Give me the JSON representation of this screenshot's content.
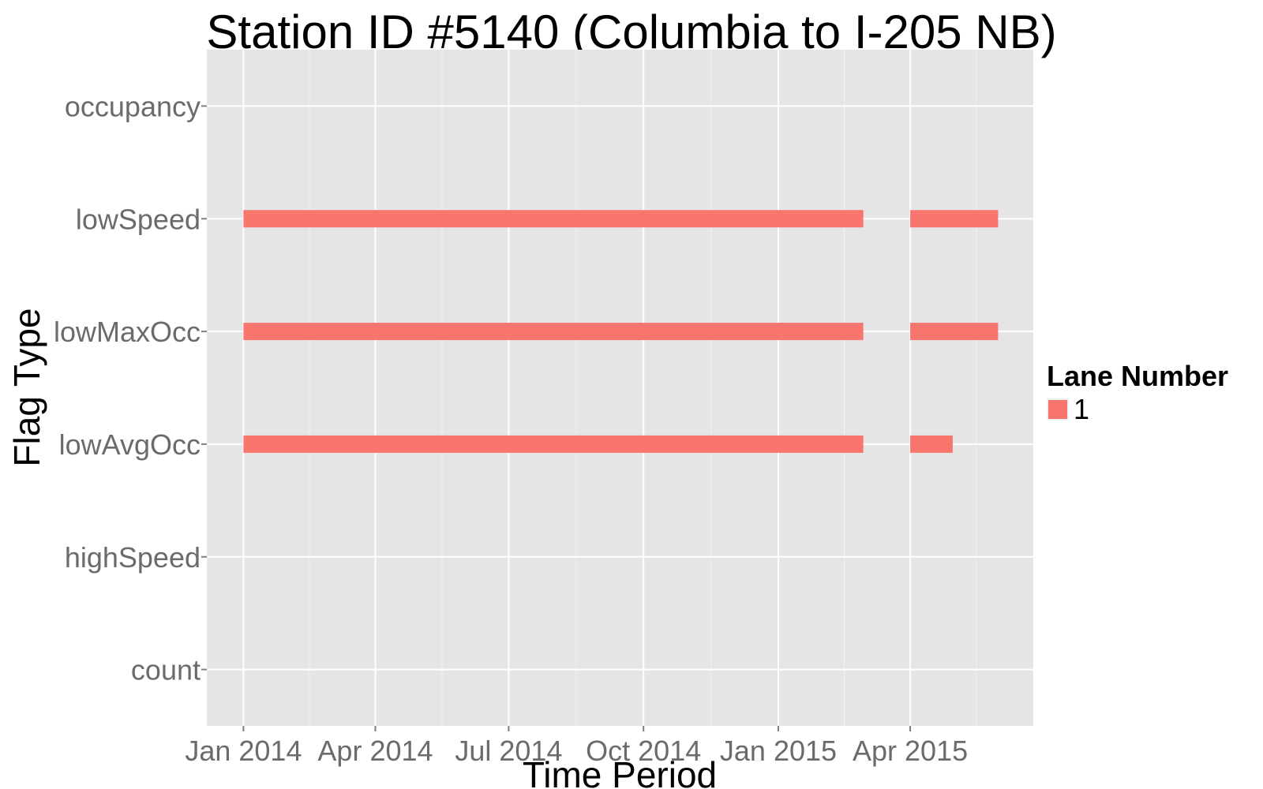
{
  "chart_data": {
    "type": "bar",
    "title": "Station ID #5140 (Columbia to I-205 NB)",
    "xlabel": "Time Period",
    "ylabel": "Flag Type",
    "categories": [
      "count",
      "highSpeed",
      "lowAvgOcc",
      "lowMaxOcc",
      "lowSpeed",
      "occupancy"
    ],
    "x_ticks": [
      {
        "label": "Jan 2014",
        "date": "2014-01-01"
      },
      {
        "label": "Apr 2014",
        "date": "2014-04-01"
      },
      {
        "label": "Jul 2014",
        "date": "2014-07-01"
      },
      {
        "label": "Oct 2014",
        "date": "2014-10-01"
      },
      {
        "label": "Jan 2015",
        "date": "2015-01-01"
      },
      {
        "label": "Apr 2015",
        "date": "2015-04-01"
      }
    ],
    "xlim": [
      "2013-12-07",
      "2015-06-24"
    ],
    "grid": true,
    "legend": {
      "title": "Lane Number",
      "position": "right",
      "entries": [
        {
          "label": "1",
          "color": "#F8766D"
        }
      ]
    },
    "series": [
      {
        "name": "1",
        "color": "#F8766D",
        "intervals": [
          {
            "flag": "lowSpeed",
            "start": "2014-01-01",
            "end": "2015-02-28"
          },
          {
            "flag": "lowSpeed",
            "start": "2015-04-01",
            "end": "2015-05-31"
          },
          {
            "flag": "lowMaxOcc",
            "start": "2014-01-01",
            "end": "2015-02-28"
          },
          {
            "flag": "lowMaxOcc",
            "start": "2015-04-01",
            "end": "2015-05-31"
          },
          {
            "flag": "lowAvgOcc",
            "start": "2014-01-01",
            "end": "2015-02-28"
          },
          {
            "flag": "lowAvgOcc",
            "start": "2015-04-01",
            "end": "2015-04-30"
          }
        ]
      }
    ]
  }
}
